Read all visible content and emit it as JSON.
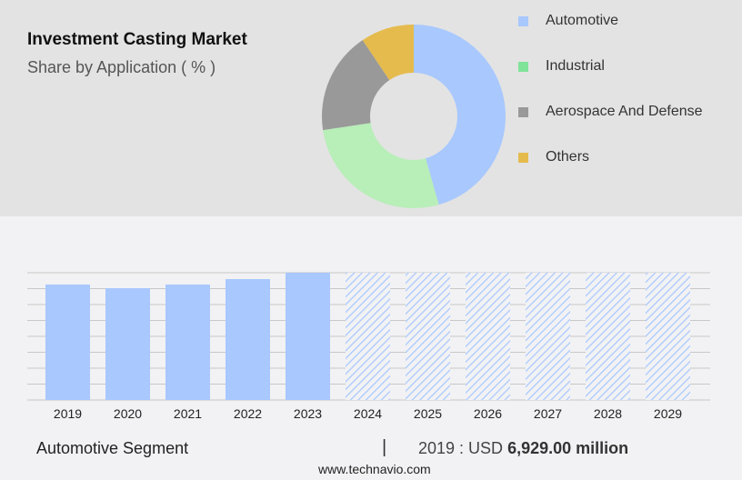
{
  "chart_data": [
    {
      "type": "pie",
      "title": "Investment Casting Market",
      "subtitle": "Share by Application ( % )",
      "labels": [
        "Automotive",
        "Industrial",
        "Aerospace And Defense",
        "Others"
      ],
      "values": [
        45.6,
        27,
        18,
        9.4
      ],
      "colors": [
        "#a8c8fe",
        "#b8eeb8",
        "#999999",
        "#e5bb4e"
      ],
      "legend_colors": [
        "#a8c8fe",
        "#7fe39a",
        "#999999",
        "#e5bb4e"
      ],
      "legend": "right"
    },
    {
      "type": "bar",
      "categories": [
        "2019",
        "2020",
        "2021",
        "2022",
        "2023",
        "2024",
        "2025",
        "2026",
        "2027",
        "2028",
        "2029"
      ],
      "values": [
        6929,
        6711,
        6929,
        7256,
        7638,
        null,
        null,
        null,
        null,
        null,
        null
      ],
      "forecast_from": "2024",
      "ylim": [
        0,
        7638
      ],
      "grid": true,
      "color": "#a8c8fe"
    }
  ],
  "footer": {
    "segment": "Automotive Segment",
    "separator": "|",
    "year_label": "2019 : USD",
    "value": "6,929.00 million",
    "url": "www.technavio.com"
  }
}
